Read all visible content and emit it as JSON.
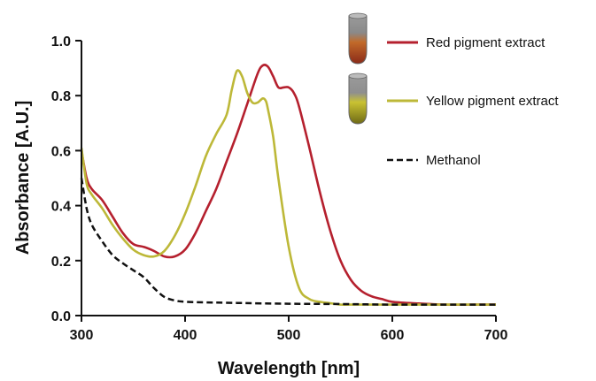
{
  "chart_data": {
    "type": "line",
    "xlabel": "Wavelength [nm]",
    "ylabel": "Absorbance [A.U.]",
    "xlim": [
      300,
      700
    ],
    "ylim": [
      0.0,
      1.0
    ],
    "xticks": [
      300,
      400,
      500,
      600,
      700
    ],
    "yticks": [
      0.0,
      0.2,
      0.4,
      0.6,
      0.8,
      1.0
    ],
    "xtick_labels": [
      "300",
      "400",
      "500",
      "600",
      "700"
    ],
    "ytick_labels": [
      "0.0",
      "0.2",
      "0.4",
      "0.6",
      "0.8",
      "1.0"
    ],
    "grid": false,
    "legend_position": "top-right",
    "series": [
      {
        "name": "Red pigment extract",
        "color": "#b5202e",
        "dash": "solid",
        "icon": "red-vial-icon",
        "x": [
          300,
          305,
          310,
          320,
          330,
          340,
          350,
          360,
          370,
          380,
          390,
          400,
          410,
          420,
          430,
          440,
          450,
          460,
          470,
          475,
          480,
          485,
          490,
          495,
          500,
          505,
          510,
          520,
          530,
          540,
          550,
          560,
          570,
          580,
          590,
          600,
          620,
          650,
          680,
          700
        ],
        "y": [
          0.6,
          0.5,
          0.46,
          0.42,
          0.36,
          0.3,
          0.26,
          0.25,
          0.235,
          0.215,
          0.215,
          0.24,
          0.3,
          0.38,
          0.46,
          0.56,
          0.66,
          0.77,
          0.88,
          0.91,
          0.905,
          0.87,
          0.83,
          0.83,
          0.83,
          0.81,
          0.76,
          0.61,
          0.45,
          0.31,
          0.2,
          0.13,
          0.09,
          0.07,
          0.06,
          0.05,
          0.045,
          0.04,
          0.04,
          0.04
        ]
      },
      {
        "name": "Yellow pigment extract",
        "color": "#bdb838",
        "dash": "solid",
        "icon": "yellow-vial-icon",
        "x": [
          300,
          305,
          310,
          320,
          330,
          340,
          350,
          360,
          370,
          380,
          390,
          400,
          410,
          420,
          430,
          440,
          445,
          450,
          455,
          460,
          465,
          470,
          475,
          478,
          480,
          485,
          490,
          500,
          510,
          520,
          530,
          540,
          550,
          560,
          580,
          600,
          650,
          700
        ],
        "y": [
          0.61,
          0.48,
          0.44,
          0.39,
          0.33,
          0.28,
          0.24,
          0.22,
          0.215,
          0.235,
          0.29,
          0.37,
          0.47,
          0.58,
          0.66,
          0.73,
          0.82,
          0.89,
          0.87,
          0.81,
          0.775,
          0.775,
          0.79,
          0.78,
          0.75,
          0.65,
          0.5,
          0.25,
          0.1,
          0.06,
          0.05,
          0.045,
          0.04,
          0.04,
          0.04,
          0.04,
          0.04,
          0.04
        ]
      },
      {
        "name": "Methanol",
        "color": "#111111",
        "dash": "dashed",
        "x": [
          300,
          305,
          310,
          320,
          330,
          340,
          350,
          360,
          370,
          380,
          390,
          400,
          420,
          450,
          500,
          550,
          600,
          650,
          700
        ],
        "y": [
          0.5,
          0.39,
          0.33,
          0.27,
          0.22,
          0.19,
          0.165,
          0.14,
          0.1,
          0.068,
          0.055,
          0.05,
          0.048,
          0.046,
          0.043,
          0.042,
          0.04,
          0.04,
          0.04
        ]
      }
    ]
  }
}
